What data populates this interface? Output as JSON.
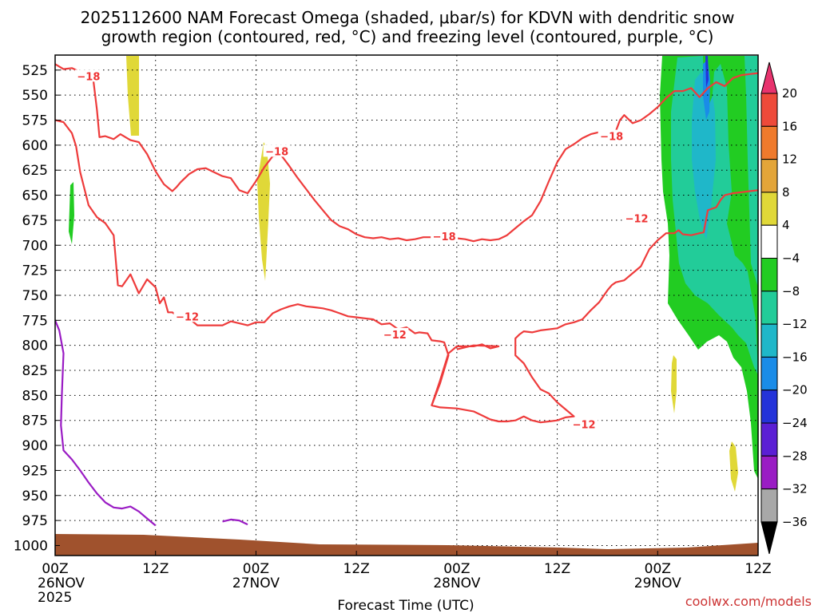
{
  "title_line1": "2025112600 NAM Forecast Omega (shaded, μbar/s) for KDVN with dendritic snow",
  "title_line2": "growth region (contoured, red, °C) and freezing level (contoured, purple, °C)",
  "credit": "coolwx.com/models",
  "chart_data": {
    "type": "contour",
    "xlabel": "Forecast Time (UTC)",
    "ylabel": "",
    "xlim": [
      0,
      84
    ],
    "ylim": [
      1010,
      510
    ],
    "x_ticks": [
      {
        "hour": 0,
        "line1": "00Z",
        "line2": "26NOV",
        "line3": "2025"
      },
      {
        "hour": 12,
        "line1": "12Z",
        "line2": "",
        "line3": ""
      },
      {
        "hour": 24,
        "line1": "00Z",
        "line2": "27NOV",
        "line3": ""
      },
      {
        "hour": 36,
        "line1": "12Z",
        "line2": "",
        "line3": ""
      },
      {
        "hour": 48,
        "line1": "00Z",
        "line2": "28NOV",
        "line3": ""
      },
      {
        "hour": 60,
        "line1": "12Z",
        "line2": "",
        "line3": ""
      },
      {
        "hour": 72,
        "line1": "00Z",
        "line2": "29NOV",
        "line3": ""
      },
      {
        "hour": 84,
        "line1": "12Z",
        "line2": "",
        "line3": ""
      }
    ],
    "y_ticks": [
      525,
      550,
      575,
      600,
      625,
      650,
      675,
      700,
      725,
      750,
      775,
      800,
      825,
      850,
      875,
      900,
      925,
      950,
      975,
      1000
    ],
    "grid": true,
    "colorbar": {
      "labels": [
        "20",
        "16",
        "12",
        "8",
        "4",
        "−4",
        "−8",
        "−12",
        "−16",
        "−20",
        "−24",
        "−28",
        "−32",
        "−36"
      ],
      "colors": [
        "#e8336e",
        "#ee4a3a",
        "#ef7a2c",
        "#e3a539",
        "#e0d838",
        "#ffffff",
        "#22cc22",
        "#22cc99",
        "#1fb7c9",
        "#1a8ce8",
        "#2433d9",
        "#5b1fd4",
        "#9a1cc4",
        "#a8a8a8",
        "#000000"
      ]
    },
    "contour_labels": [
      {
        "text": "−18",
        "hour": 4,
        "p": 531
      },
      {
        "text": "−18",
        "hour": 26.5,
        "p": 606
      },
      {
        "text": "−18",
        "hour": 46.5,
        "p": 691
      },
      {
        "text": "−18",
        "hour": 66.5,
        "p": 591
      },
      {
        "text": "−12",
        "hour": 15.8,
        "p": 771
      },
      {
        "text": "−12",
        "hour": 40.6,
        "p": 789
      },
      {
        "text": "−12",
        "hour": 63.2,
        "p": 879
      },
      {
        "text": "−12",
        "hour": 69.5,
        "p": 673
      }
    ],
    "series": [
      {
        "color": "#ee3b3b",
        "points": [
          [
            0,
            519
          ],
          [
            1,
            524
          ],
          [
            2,
            523
          ],
          [
            3.5,
            529
          ],
          [
            4.5,
            530
          ],
          [
            5,
            565
          ],
          [
            5.3,
            592
          ],
          [
            6,
            591
          ],
          [
            7,
            594
          ],
          [
            7.8,
            589
          ],
          [
            9,
            595
          ],
          [
            10,
            597
          ],
          [
            11,
            609
          ],
          [
            12,
            626
          ],
          [
            13,
            639
          ],
          [
            14,
            646
          ],
          [
            14.5,
            642
          ],
          [
            15,
            637
          ],
          [
            16,
            629
          ],
          [
            17,
            624
          ],
          [
            18,
            623
          ],
          [
            19,
            627
          ],
          [
            20,
            631
          ],
          [
            21,
            633
          ],
          [
            22,
            645
          ],
          [
            23,
            648
          ],
          [
            24,
            636
          ],
          [
            25,
            622
          ],
          [
            26,
            611
          ],
          [
            27,
            610
          ],
          [
            28,
            621
          ],
          [
            29,
            633
          ],
          [
            30,
            644
          ],
          [
            31,
            655
          ],
          [
            32,
            665
          ],
          [
            33,
            675
          ],
          [
            34,
            681
          ],
          [
            35,
            684
          ],
          [
            36,
            689
          ],
          [
            37,
            692
          ],
          [
            38,
            693
          ],
          [
            39,
            692
          ],
          [
            40,
            694
          ],
          [
            41,
            693
          ],
          [
            42,
            695
          ],
          [
            43,
            694
          ],
          [
            44,
            692
          ],
          [
            45,
            692
          ],
          [
            46,
            692
          ],
          [
            48,
            693
          ],
          [
            49,
            694
          ],
          [
            50,
            696
          ],
          [
            51,
            694
          ],
          [
            52,
            695
          ],
          [
            53,
            694
          ],
          [
            54,
            690
          ],
          [
            55,
            683
          ],
          [
            56,
            676
          ],
          [
            57,
            670
          ],
          [
            58,
            656
          ],
          [
            59,
            636
          ],
          [
            60,
            617
          ],
          [
            61,
            604
          ],
          [
            62,
            599
          ],
          [
            63,
            593
          ],
          [
            64,
            589
          ],
          [
            65,
            587
          ],
          [
            66,
            588
          ],
          [
            67,
            586
          ],
          [
            67.5,
            575
          ],
          [
            68,
            570
          ],
          [
            69,
            578
          ],
          [
            70,
            575
          ],
          [
            71,
            569
          ],
          [
            72,
            562
          ],
          [
            73,
            553
          ],
          [
            74,
            546
          ],
          [
            75,
            546
          ],
          [
            76,
            543
          ],
          [
            77,
            552
          ],
          [
            78,
            543
          ],
          [
            79,
            537
          ],
          [
            80,
            541
          ],
          [
            81,
            533
          ],
          [
            82,
            530
          ],
          [
            83,
            529
          ],
          [
            84,
            528
          ]
        ]
      },
      {
        "color": "#ee3b3b",
        "points": [
          [
            0,
            575
          ],
          [
            1,
            577
          ],
          [
            2,
            588
          ],
          [
            2.5,
            601
          ],
          [
            3,
            627
          ],
          [
            4,
            660
          ],
          [
            5,
            672
          ],
          [
            6,
            678
          ],
          [
            7,
            690
          ],
          [
            7.5,
            740
          ],
          [
            8,
            741
          ],
          [
            9,
            729
          ],
          [
            10,
            748
          ],
          [
            11,
            734
          ],
          [
            12,
            742
          ],
          [
            12.5,
            758
          ],
          [
            13,
            752
          ],
          [
            13.5,
            767
          ],
          [
            14,
            767
          ],
          [
            15,
            773
          ],
          [
            16,
            773
          ],
          [
            17,
            780
          ],
          [
            18,
            780
          ],
          [
            20,
            780
          ],
          [
            21,
            776
          ],
          [
            22,
            778
          ],
          [
            23,
            780
          ],
          [
            24,
            777
          ],
          [
            25,
            777
          ],
          [
            26,
            768
          ],
          [
            27,
            764
          ],
          [
            28,
            761
          ],
          [
            29,
            759
          ],
          [
            30,
            761
          ],
          [
            31,
            762
          ],
          [
            32,
            763
          ],
          [
            33,
            765
          ],
          [
            34,
            768
          ],
          [
            35,
            771
          ],
          [
            36,
            772
          ],
          [
            37,
            773
          ],
          [
            38,
            774
          ],
          [
            39,
            779
          ],
          [
            40,
            778
          ],
          [
            41,
            784
          ],
          [
            42,
            782
          ],
          [
            43,
            788
          ],
          [
            43.5,
            787
          ],
          [
            44.5,
            788
          ],
          [
            45,
            795
          ],
          [
            46,
            796
          ],
          [
            46.5,
            797
          ],
          [
            47,
            810
          ],
          [
            46,
            838
          ],
          [
            45,
            860
          ],
          [
            46,
            862
          ],
          [
            48,
            863
          ],
          [
            50,
            866
          ],
          [
            51,
            870
          ],
          [
            52,
            874
          ],
          [
            53,
            876
          ],
          [
            54,
            876
          ],
          [
            55,
            875
          ],
          [
            56,
            871
          ],
          [
            57,
            875
          ],
          [
            58,
            877
          ],
          [
            59,
            876
          ],
          [
            60,
            875
          ],
          [
            61,
            872
          ],
          [
            62,
            871
          ],
          [
            61,
            864
          ],
          [
            60,
            857
          ],
          [
            59,
            848
          ],
          [
            58,
            844
          ],
          [
            57,
            832
          ],
          [
            56,
            818
          ],
          [
            55,
            810
          ],
          [
            55,
            793
          ],
          [
            55.5,
            789
          ],
          [
            56,
            786
          ],
          [
            57,
            787
          ],
          [
            58,
            785
          ],
          [
            60,
            783
          ],
          [
            61,
            779
          ],
          [
            62,
            777
          ],
          [
            63,
            774
          ],
          [
            64,
            765
          ],
          [
            65,
            757
          ],
          [
            66,
            745
          ],
          [
            66.5,
            740
          ],
          [
            67,
            737
          ],
          [
            68,
            735
          ],
          [
            69,
            728
          ],
          [
            70,
            721
          ],
          [
            71,
            704
          ],
          [
            72,
            695
          ],
          [
            73,
            688
          ],
          [
            74,
            688
          ],
          [
            74.5,
            685
          ],
          [
            75,
            689
          ],
          [
            76,
            690
          ],
          [
            77,
            688
          ],
          [
            77.5,
            687
          ],
          [
            78,
            665
          ],
          [
            79,
            662
          ],
          [
            79.5,
            655
          ],
          [
            80,
            650
          ],
          [
            81,
            648
          ],
          [
            82,
            647
          ],
          [
            83,
            646
          ],
          [
            84,
            645
          ]
        ]
      },
      {
        "color": "#ee3b3b",
        "points": [
          [
            45,
            860
          ],
          [
            46,
            835
          ],
          [
            47,
            808
          ],
          [
            48,
            801
          ],
          [
            50,
            801
          ],
          [
            51,
            799
          ],
          [
            52,
            803
          ],
          [
            53,
            801
          ],
          [
            50,
            800
          ],
          [
            49,
            802
          ],
          [
            48,
            804
          ]
        ]
      },
      {
        "color": "#9a1cc4",
        "points": [
          [
            0,
            775
          ],
          [
            0.5,
            785
          ],
          [
            1,
            808
          ],
          [
            0.8,
            850
          ],
          [
            0.7,
            880
          ],
          [
            1,
            905
          ],
          [
            2,
            914
          ],
          [
            3,
            925
          ],
          [
            4,
            937
          ],
          [
            5,
            948
          ],
          [
            6,
            957
          ],
          [
            7,
            962
          ],
          [
            8,
            963
          ],
          [
            9,
            961
          ],
          [
            10,
            966
          ],
          [
            11,
            973
          ],
          [
            12,
            980
          ]
        ]
      },
      {
        "color": "#9a1cc4",
        "points": [
          [
            20,
            976
          ],
          [
            21,
            974
          ],
          [
            22,
            975
          ],
          [
            23,
            979
          ]
        ]
      }
    ]
  }
}
